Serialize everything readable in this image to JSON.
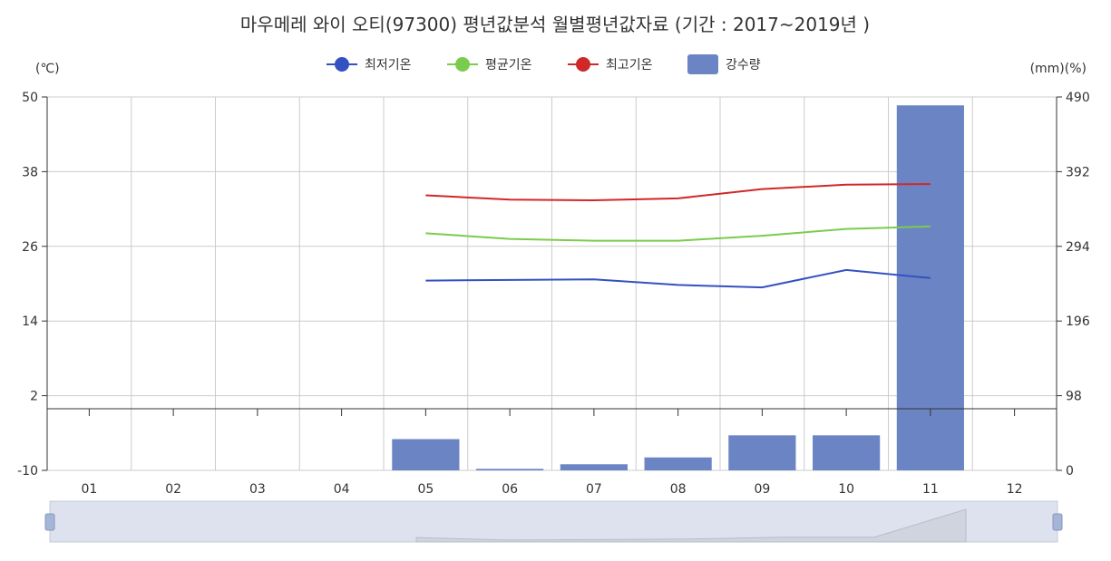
{
  "chart_data": {
    "type": "bar+line",
    "title": "마우메레 와이 오티(97300) 평년값분석 월별평년값자료 (기간 : 2017~2019년 )",
    "left_unit": "(℃)",
    "right_unit": "(mm)(%)",
    "categories": [
      "01",
      "02",
      "03",
      "04",
      "05",
      "06",
      "07",
      "08",
      "09",
      "10",
      "11",
      "12"
    ],
    "left_axis": {
      "min": -10,
      "max": 50,
      "ticks": [
        -10,
        2,
        14,
        26,
        38,
        50
      ]
    },
    "right_axis": {
      "min": 0,
      "max": 490,
      "ticks": [
        0,
        98,
        196,
        294,
        392,
        490
      ]
    },
    "series": [
      {
        "name": "최저기온",
        "kind": "line",
        "axis": "left",
        "color": "#3451c1",
        "values": [
          null,
          null,
          null,
          null,
          20.5,
          20.6,
          20.7,
          19.8,
          19.4,
          22.2,
          20.9,
          null
        ]
      },
      {
        "name": "평균기온",
        "kind": "line",
        "axis": "left",
        "color": "#7acc4c",
        "values": [
          null,
          null,
          null,
          null,
          28.1,
          27.2,
          26.9,
          26.9,
          27.7,
          28.8,
          29.2,
          null
        ]
      },
      {
        "name": "최고기온",
        "kind": "line",
        "axis": "left",
        "color": "#d02828",
        "values": [
          null,
          null,
          null,
          null,
          34.2,
          33.5,
          33.4,
          33.7,
          35.2,
          35.9,
          36.0,
          null
        ]
      },
      {
        "name": "강수량",
        "kind": "bar",
        "axis": "right",
        "color": "#6b85c4",
        "values": [
          0,
          0,
          0,
          0,
          41,
          2,
          8,
          17,
          46,
          46,
          479,
          0
        ]
      }
    ],
    "grid": true,
    "legend_position": "top-center",
    "data_zoom": true
  }
}
